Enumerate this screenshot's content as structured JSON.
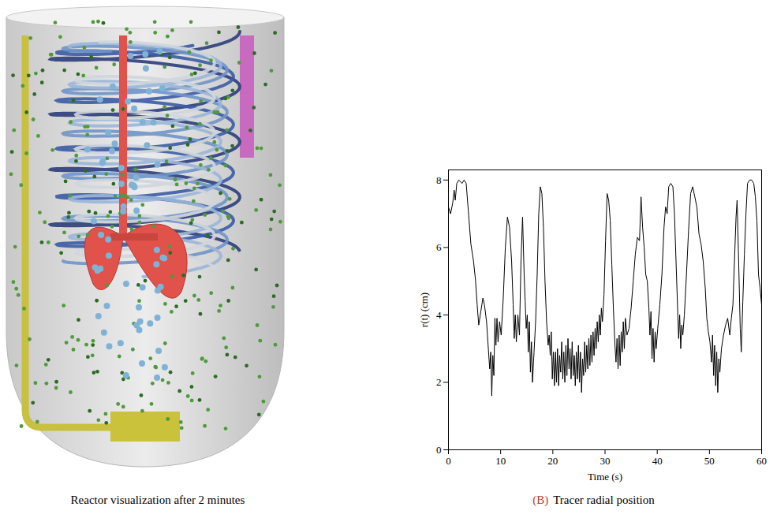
{
  "image_panel": {
    "caption": "Reactor visualization after 2 minutes"
  },
  "chart_data": {
    "type": "line",
    "panel_label": "(B)",
    "caption": "Tracer radial position",
    "x_label": "Time (s)",
    "y_label": "r(t) (cm)",
    "x": [
      0,
      0.4,
      0.8,
      1.1,
      1.3,
      1.6,
      2.0,
      2.6,
      3.0,
      3.4,
      3.8,
      4.3,
      4.8,
      5.2,
      5.5,
      5.8,
      6.2,
      6.6,
      6.9,
      7.3,
      7.6,
      7.9,
      8.1,
      8.3,
      8.5,
      8.7,
      8.9,
      9.1,
      9.3,
      9.5,
      9.8,
      10.1,
      10.5,
      10.9,
      11.3,
      11.7,
      12.1,
      12.4,
      12.6,
      12.8,
      13.0,
      13.3,
      13.6,
      13.9,
      14.2,
      14.5,
      14.7,
      14.9,
      15.1,
      15.3,
      15.5,
      15.7,
      15.9,
      16.1,
      16.4,
      16.7,
      17.0,
      17.3,
      17.6,
      17.9,
      18.2,
      18.5,
      18.8,
      19.1,
      19.3,
      19.5,
      19.7,
      19.9,
      20.1,
      20.3,
      20.5,
      20.7,
      20.9,
      21.1,
      21.3,
      21.5,
      21.7,
      21.9,
      22.1,
      22.3,
      22.5,
      22.7,
      22.9,
      23.1,
      23.3,
      23.5,
      23.7,
      23.9,
      24.1,
      24.3,
      24.5,
      24.7,
      24.9,
      25.1,
      25.3,
      25.5,
      25.7,
      25.9,
      26.1,
      26.3,
      26.5,
      26.7,
      26.9,
      27.1,
      27.3,
      27.5,
      27.7,
      27.9,
      28.1,
      28.3,
      28.5,
      28.7,
      28.9,
      29.1,
      29.3,
      29.5,
      29.8,
      30.1,
      30.4,
      30.7,
      31.0,
      31.3,
      31.6,
      31.9,
      32.1,
      32.3,
      32.5,
      32.7,
      32.9,
      33.1,
      33.3,
      33.5,
      33.7,
      33.9,
      34.2,
      34.6,
      35.0,
      35.4,
      35.8,
      36.2,
      36.6,
      36.9,
      37.2,
      37.5,
      37.8,
      38.1,
      38.4,
      38.6,
      38.8,
      39.0,
      39.2,
      39.4,
      39.6,
      39.8,
      40.1,
      40.5,
      40.9,
      41.3,
      41.6,
      41.9,
      42.2,
      42.6,
      43.0,
      43.3,
      43.6,
      43.9,
      44.1,
      44.3,
      44.5,
      44.7,
      44.9,
      45.2,
      45.6,
      46.0,
      46.4,
      46.8,
      47.2,
      47.6,
      48.0,
      48.4,
      48.8,
      49.2,
      49.5,
      49.8,
      50.1,
      50.4,
      50.6,
      50.8,
      51.0,
      51.2,
      51.4,
      51.6,
      51.8,
      52.0,
      52.3,
      52.7,
      53.1,
      53.5,
      53.9,
      54.2,
      54.5,
      54.8,
      55.1,
      55.3,
      55.6,
      55.9,
      56.1,
      56.4,
      56.7,
      57.0,
      57.3,
      57.7,
      58.1,
      58.5,
      58.8,
      59.1,
      59.4,
      59.7,
      60.0
    ],
    "values": [
      7.2,
      7.0,
      7.3,
      7.7,
      7.4,
      7.9,
      8.0,
      7.9,
      8.0,
      7.9,
      7.1,
      6.1,
      5.6,
      5.0,
      4.3,
      3.7,
      4.1,
      4.5,
      4.3,
      3.8,
      3.1,
      2.4,
      2.9,
      1.6,
      2.8,
      2.2,
      3.9,
      3.1,
      3.9,
      3.2,
      3.8,
      3.4,
      4.5,
      6.0,
      6.9,
      6.6,
      5.6,
      4.3,
      3.3,
      4.0,
      3.2,
      4.0,
      3.4,
      5.6,
      6.9,
      5.2,
      4.4,
      3.6,
      4.0,
      2.9,
      3.8,
      2.3,
      3.2,
      2.0,
      2.9,
      3.8,
      5.2,
      7.0,
      7.8,
      7.6,
      6.6,
      5.0,
      3.8,
      3.1,
      3.4,
      2.8,
      3.5,
      2.1,
      2.9,
      1.9,
      2.9,
      2.0,
      3.0,
      1.9,
      2.8,
      2.3,
      3.2,
      2.1,
      2.9,
      2.0,
      3.1,
      2.2,
      3.3,
      2.4,
      3.0,
      2.1,
      3.2,
      2.2,
      2.8,
      1.9,
      2.9,
      2.1,
      3.1,
      2.0,
      2.9,
      1.7,
      2.7,
      2.2,
      3.2,
      2.3,
      3.1,
      2.4,
      3.3,
      2.5,
      3.4,
      2.6,
      3.5,
      2.8,
      3.6,
      3.0,
      3.8,
      3.2,
      4.0,
      3.4,
      4.2,
      3.8,
      4.6,
      6.2,
      7.6,
      7.4,
      6.8,
      5.5,
      4.2,
      3.1,
      2.6,
      3.3,
      2.4,
      3.4,
      2.5,
      3.5,
      2.9,
      3.8,
      3.0,
      3.9,
      3.4,
      3.6,
      4.2,
      5.0,
      5.8,
      6.3,
      6.2,
      7.5,
      6.6,
      6.0,
      5.2,
      5.0,
      4.2,
      3.4,
      4.1,
      2.7,
      3.6,
      2.6,
      3.5,
      3.0,
      3.6,
      4.3,
      5.2,
      6.6,
      7.2,
      7.0,
      7.8,
      7.9,
      7.8,
      7.0,
      5.6,
      4.2,
      3.3,
      4.0,
      3.0,
      3.7,
      3.4,
      4.0,
      5.2,
      6.5,
      7.6,
      7.8,
      7.5,
      7.2,
      6.4,
      6.1,
      5.6,
      4.8,
      3.9,
      3.5,
      3.2,
      2.6,
      3.4,
      2.2,
      3.1,
      1.9,
      2.9,
      1.7,
      2.7,
      2.3,
      3.0,
      3.4,
      3.7,
      3.9,
      3.4,
      3.9,
      4.3,
      5.6,
      6.9,
      7.4,
      5.6,
      3.6,
      2.9,
      4.4,
      5.8,
      7.0,
      7.9,
      8.0,
      8.0,
      7.9,
      7.5,
      6.8,
      5.2,
      4.8,
      4.3
    ],
    "color": "#000000",
    "xlim": [
      0,
      60
    ],
    "xticks": [
      0,
      10,
      20,
      30,
      40,
      50,
      60
    ],
    "ylim": [
      0,
      8.3
    ],
    "yticks": [
      0,
      2,
      4,
      6,
      8
    ]
  }
}
